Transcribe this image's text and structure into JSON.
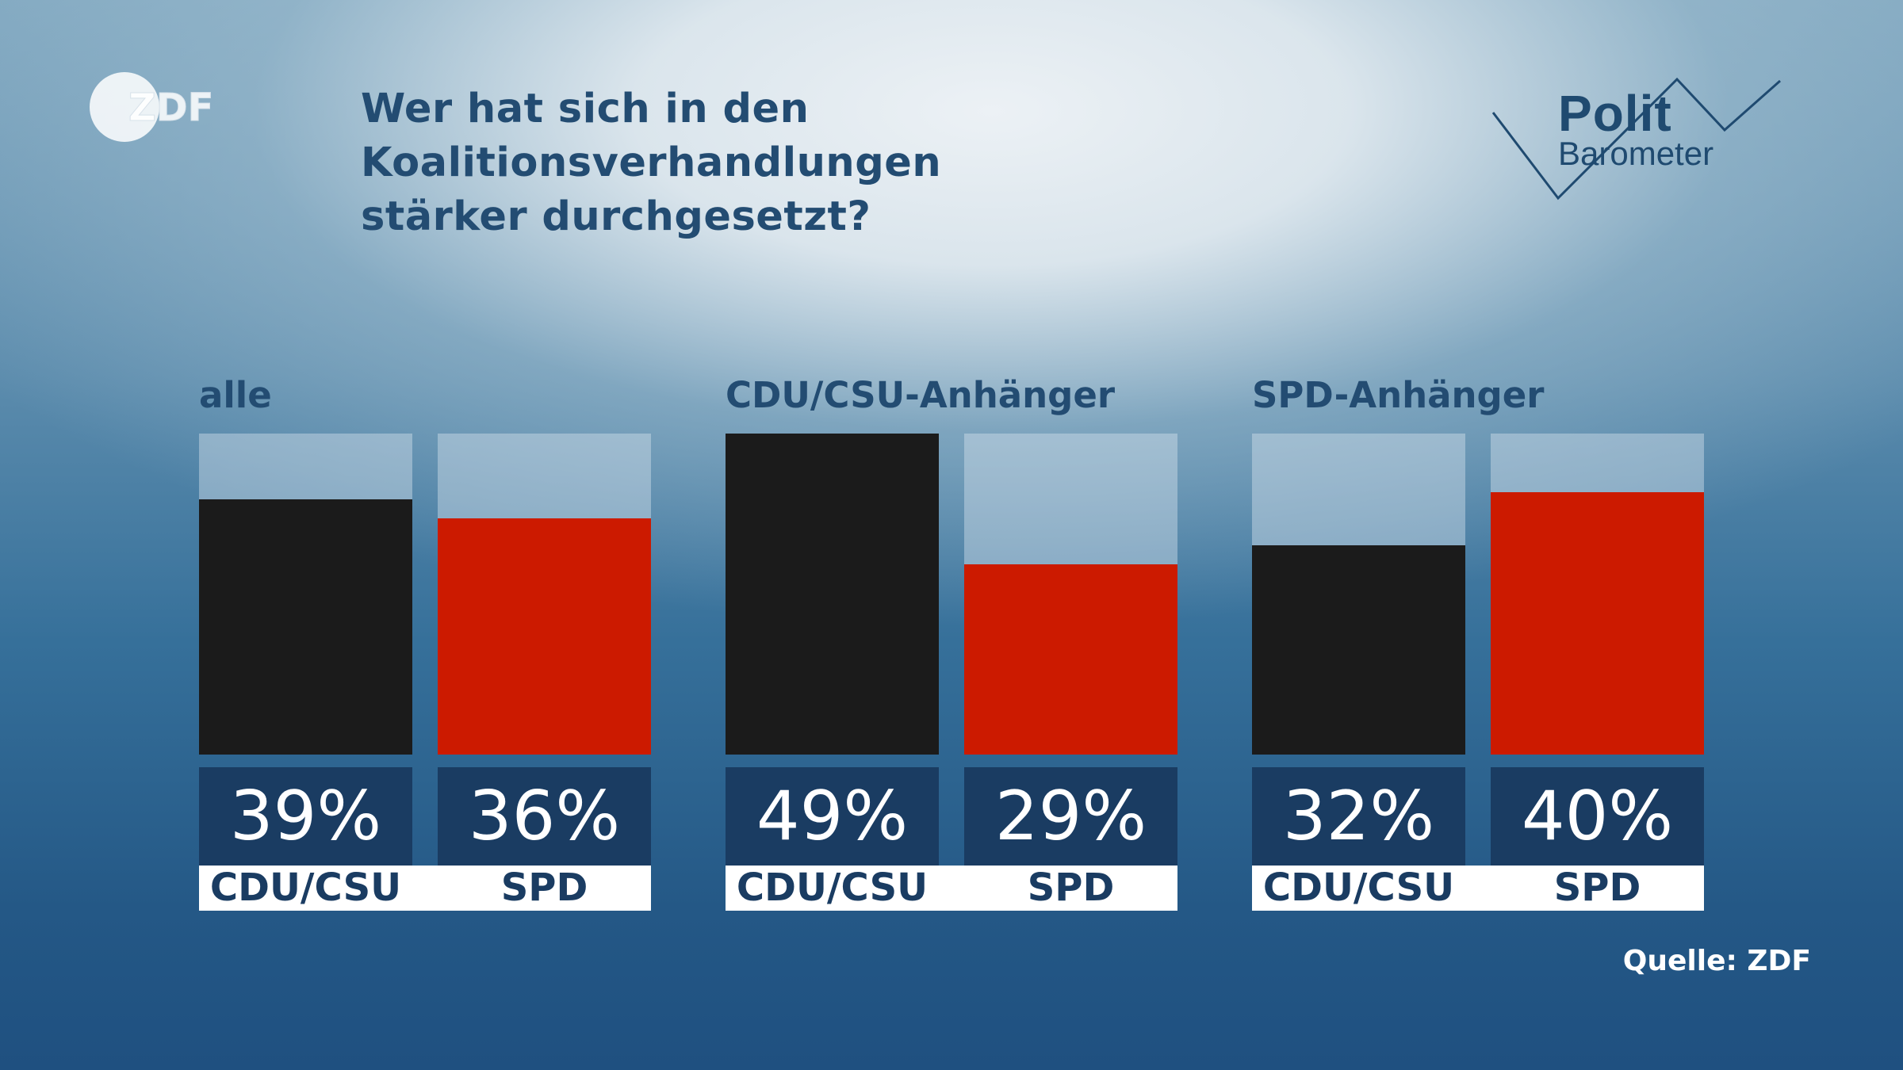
{
  "branding": {
    "broadcaster_logo": "ZDF",
    "program_logo_line1": "Polit",
    "program_logo_line2": "Barometer"
  },
  "source_label": "Quelle: ZDF",
  "colors": {
    "cdu_csu": "#1b1b1b",
    "spd": "#cc1a00",
    "value_box": "#1a3c62",
    "title": "#234c72"
  },
  "chart_data": {
    "type": "bar",
    "title": "Wer hat sich in den Koalitionsverhandlungen stärker durchgesetzt?",
    "title_lines": [
      "Wer hat sich in den Koalitionsverhandlungen",
      "stärker durchgesetzt?"
    ],
    "xlabel": "",
    "ylabel": "",
    "ylim": [
      0,
      49
    ],
    "unit": "%",
    "groups": [
      {
        "label": "alle",
        "bars": [
          {
            "category": "CDU/CSU",
            "value": 39,
            "display": "39%",
            "color_key": "cdu_csu"
          },
          {
            "category": "SPD",
            "value": 36,
            "display": "36%",
            "color_key": "spd"
          }
        ]
      },
      {
        "label": "CDU/CSU-Anhänger",
        "bars": [
          {
            "category": "CDU/CSU",
            "value": 49,
            "display": "49%",
            "color_key": "cdu_csu"
          },
          {
            "category": "SPD",
            "value": 29,
            "display": "29%",
            "color_key": "spd"
          }
        ]
      },
      {
        "label": "SPD-Anhänger",
        "bars": [
          {
            "category": "CDU/CSU",
            "value": 32,
            "display": "32%",
            "color_key": "cdu_csu"
          },
          {
            "category": "SPD",
            "value": 40,
            "display": "40%",
            "color_key": "spd"
          }
        ]
      }
    ]
  }
}
